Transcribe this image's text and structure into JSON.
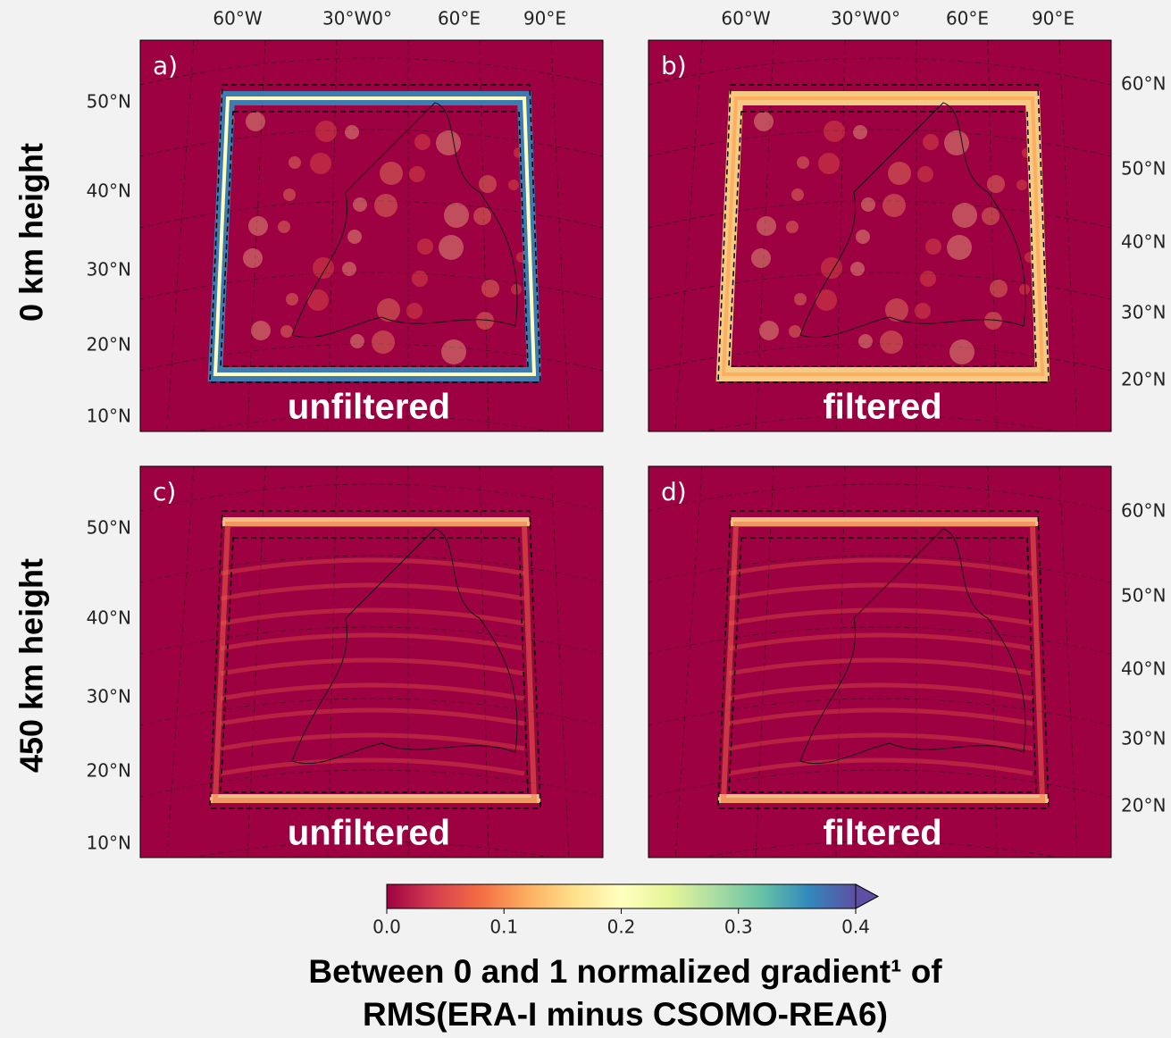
{
  "row_labels": [
    "0 km height",
    "450 km height"
  ],
  "panels": [
    {
      "label": "a)",
      "caption": "unfiltered",
      "top_labels": [
        "60°W",
        "30°W0°",
        "60°E",
        "90°E"
      ],
      "left_labels": [
        "50°N",
        "40°N",
        "30°N",
        "20°N",
        "10°N"
      ],
      "right_labels": []
    },
    {
      "label": "b)",
      "caption": "filtered",
      "top_labels": [
        "60°W",
        "30°W0°",
        "60°E",
        "90°E"
      ],
      "left_labels": [],
      "right_labels": [
        "60°N",
        "50°N",
        "40°N",
        "30°N",
        "20°N"
      ]
    },
    {
      "label": "c)",
      "caption": "unfiltered",
      "top_labels": [],
      "left_labels": [
        "50°N",
        "40°N",
        "30°N",
        "20°N",
        "10°N"
      ],
      "right_labels": []
    },
    {
      "label": "d)",
      "caption": "filtered",
      "top_labels": [],
      "left_labels": [],
      "right_labels": [
        "60°N",
        "50°N",
        "40°N",
        "30°N",
        "20°N"
      ]
    }
  ],
  "colorbar": {
    "lim": [
      0,
      0.4
    ],
    "ticks": [
      {
        "value": 0,
        "label": "0.0"
      },
      0.1,
      0.2,
      0.3,
      0.4
    ],
    "colors": [
      "#9e0142",
      "#d53e4f",
      "#f46d43",
      "#fdae61",
      "#fee08b",
      "#ffffbf",
      "#e6f598",
      "#abdda4",
      "#66c2a5",
      "#3288bd",
      "#5e4fa2"
    ]
  },
  "title": [
    "Between 0 and 1 normalized gradient¹ of",
    "RMS(ERA-I minus CSOMO-REA6)"
  ]
}
